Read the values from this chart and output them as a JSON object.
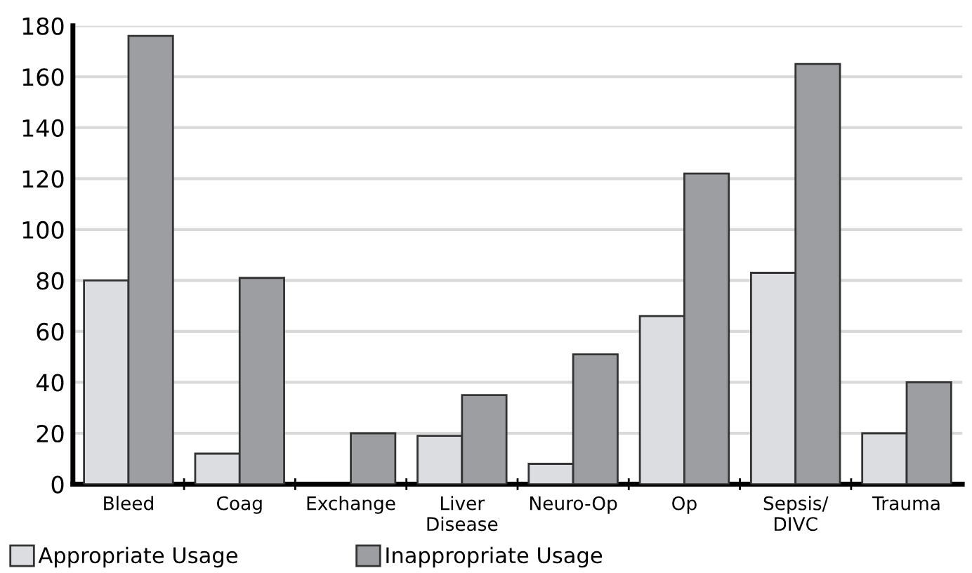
{
  "chart_data": {
    "type": "bar",
    "categories": [
      "Bleed",
      "Coag",
      "Exchange",
      "Liver\nDisease",
      "Neuro-Op",
      "Op",
      "Sepsis/\nDIVC",
      "Trauma"
    ],
    "series": [
      {
        "name": "Appropriate Usage",
        "color": "#dcdde0",
        "values": [
          80,
          12,
          null,
          19,
          8,
          66,
          83,
          20
        ]
      },
      {
        "name": "Inappropriate Usage",
        "color": "#9d9ea2",
        "values": [
          176,
          81,
          20,
          35,
          51,
          122,
          165,
          40
        ]
      }
    ],
    "ylim": [
      0,
      180
    ],
    "yticks": [
      0,
      20,
      40,
      60,
      80,
      100,
      120,
      140,
      160,
      180
    ],
    "grid": "y",
    "legend": "bottom left"
  }
}
